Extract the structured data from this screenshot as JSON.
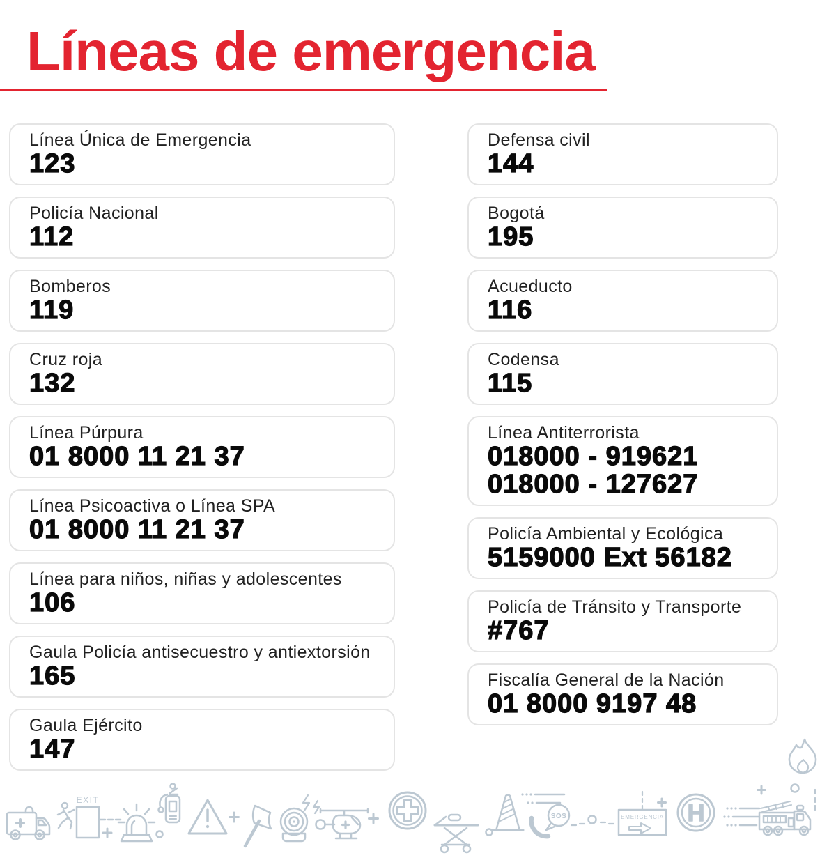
{
  "title": {
    "text": "Líneas de emergencia"
  },
  "theme": {
    "accent": "#e32430",
    "icon_color": "#bcc8d2",
    "label_color": "#212121",
    "number_color": "#0a0a0a",
    "card_border": "#e4e4e4"
  },
  "columns": {
    "left": [
      {
        "label": "Línea Única de Emergencia",
        "numbers": [
          "123"
        ]
      },
      {
        "label": "Policía Nacional",
        "numbers": [
          "112"
        ]
      },
      {
        "label": "Bomberos",
        "numbers": [
          "119"
        ]
      },
      {
        "label": "Cruz roja",
        "numbers": [
          "132"
        ]
      },
      {
        "label": "Línea Púrpura",
        "numbers": [
          "01 8000 11 21 37"
        ]
      },
      {
        "label": "Línea Psicoactiva o Línea SPA",
        "numbers": [
          "01 8000 11 21 37"
        ]
      },
      {
        "label": "Línea para niños, niñas y adolescentes",
        "numbers": [
          "106"
        ]
      },
      {
        "label": "Gaula Policía antisecuestro y antiextorsión",
        "numbers": [
          "165"
        ]
      },
      {
        "label": "Gaula Ejército",
        "numbers": [
          "147"
        ]
      }
    ],
    "right": [
      {
        "label": "Defensa civil",
        "numbers": [
          "144"
        ]
      },
      {
        "label": "Bogotá",
        "numbers": [
          "195"
        ]
      },
      {
        "label": "Acueducto",
        "numbers": [
          "116"
        ]
      },
      {
        "label": "Codensa",
        "numbers": [
          "115"
        ]
      },
      {
        "label": "Línea Antiterrorista",
        "numbers": [
          "018000 - 919621",
          "018000 - 127627"
        ]
      },
      {
        "label": "Policía Ambiental y Ecológica",
        "numbers": [
          "5159000 Ext 56182"
        ]
      },
      {
        "label": "Policía de Tránsito y Transporte",
        "numbers": [
          "#767"
        ]
      },
      {
        "label": "Fiscalía General de la Nación",
        "numbers": [
          "01 8000 9197 48"
        ]
      }
    ]
  },
  "footer_icons": {
    "exit_label": "EXIT",
    "sos_label": "SOS",
    "emergencia_label": "EMERGENCIA",
    "hospital_letter": "H",
    "names": [
      "ambulance",
      "exit-runner",
      "siren",
      "fire-extinguisher",
      "warning-triangle",
      "axe",
      "alarm-horn",
      "helicopter",
      "medical-cross",
      "stretcher",
      "traffic-cone",
      "sos-phone",
      "emergencia-sign",
      "hospital",
      "fire-truck",
      "flame"
    ]
  }
}
